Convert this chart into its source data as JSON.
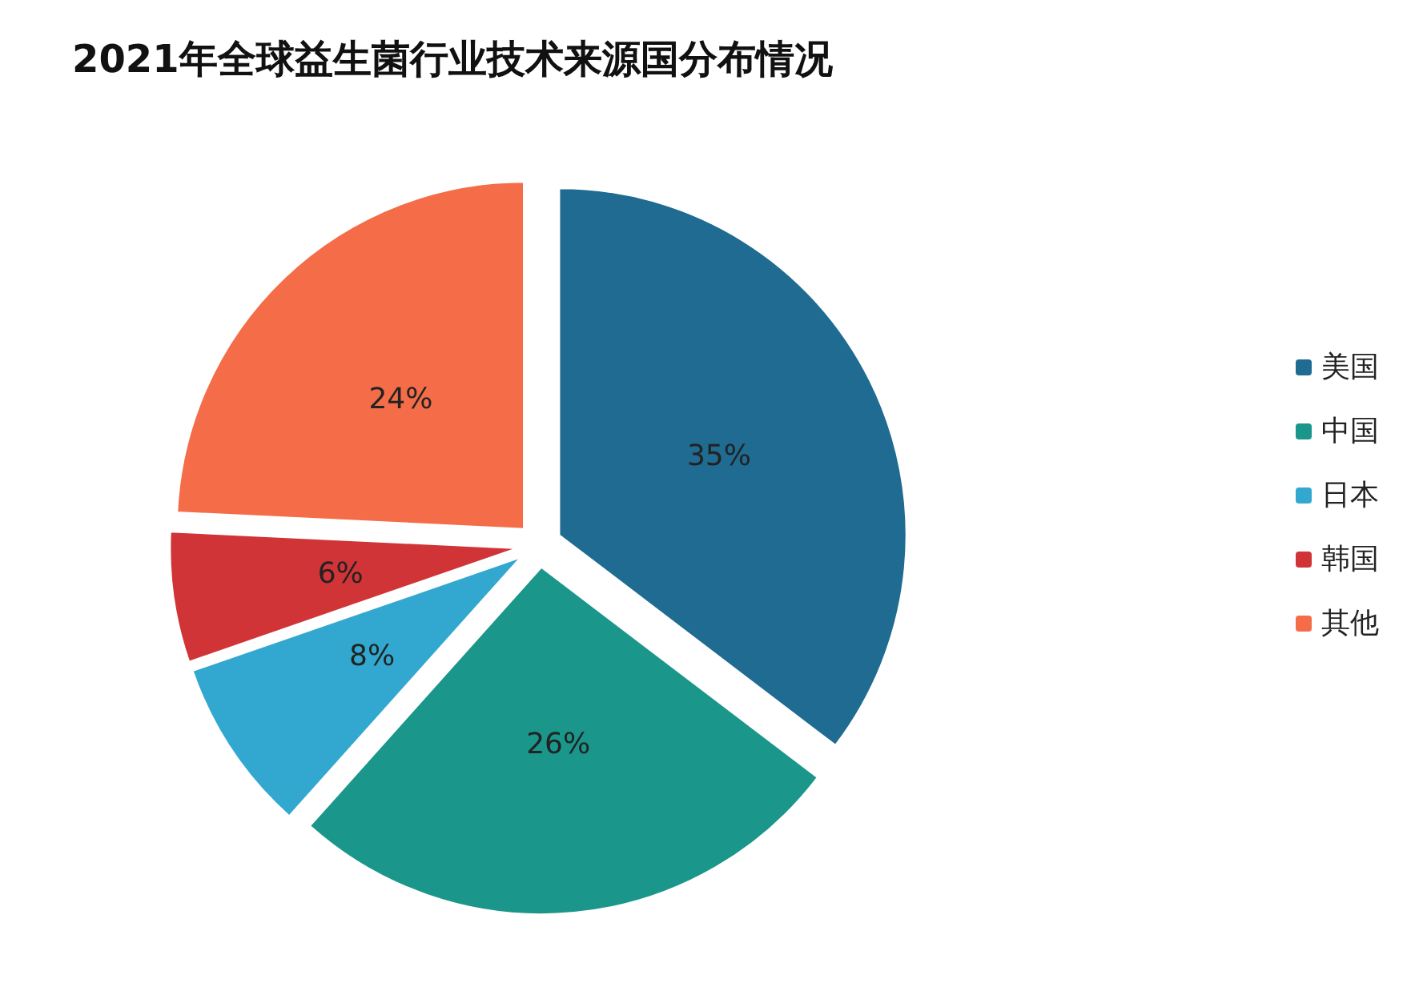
{
  "chart_data": {
    "type": "pie",
    "title": "2021年全球益生菌行业技术来源国分布情况",
    "categories": [
      "美国",
      "中国",
      "日本",
      "韩国",
      "其他"
    ],
    "values": [
      35,
      26,
      8,
      6,
      24
    ],
    "value_labels": [
      "35%",
      "26%",
      "8%",
      "6%",
      "24%"
    ],
    "colors": [
      "#1f6b92",
      "#1a968a",
      "#32a8d0",
      "#d03437",
      "#f46d48"
    ],
    "legend": "right"
  }
}
